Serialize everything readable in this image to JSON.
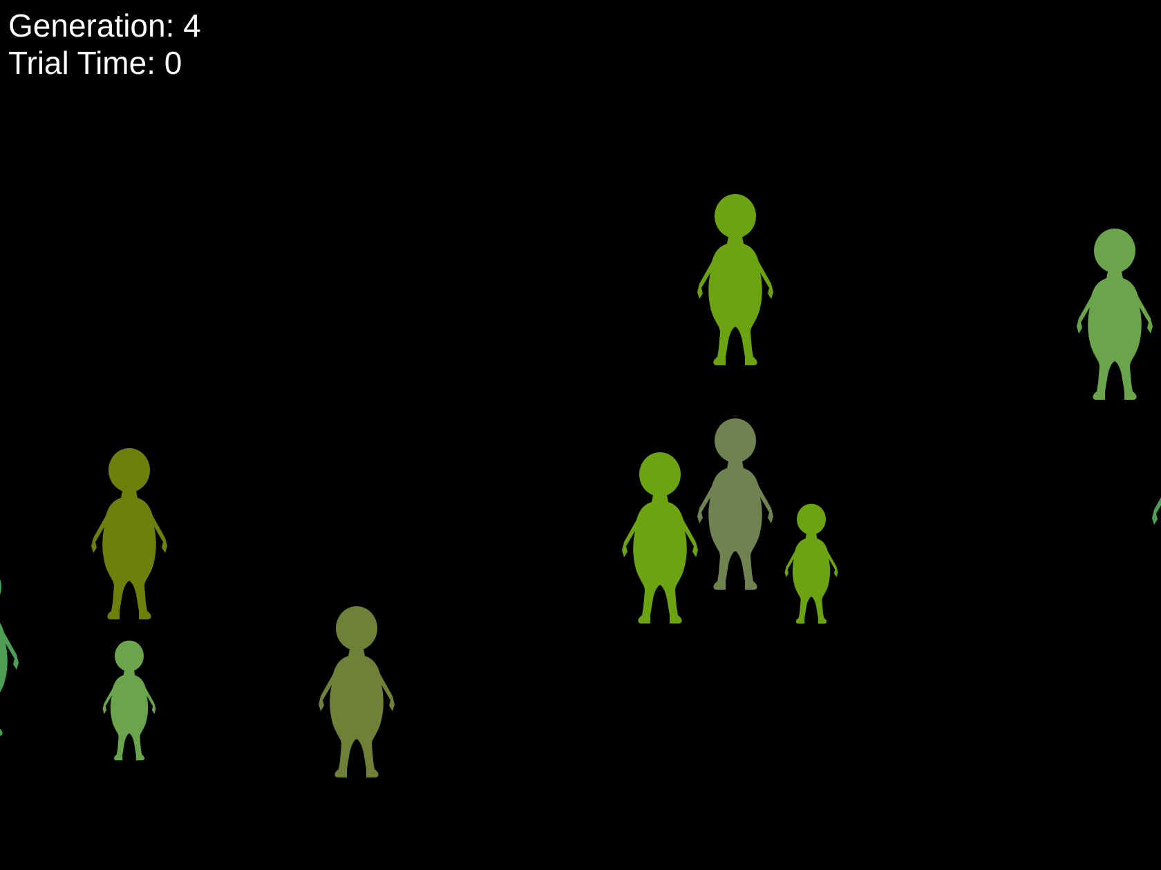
{
  "hud": {
    "generation_label": "Generation:",
    "generation_value": "4",
    "trial_time_label": "Trial Time:",
    "trial_time_value": "0"
  },
  "creatures": [
    {
      "id": "creature-1",
      "color": "#6ca311",
      "scale": 1.0
    },
    {
      "id": "creature-2",
      "color": "#6aa54b",
      "scale": 1.0
    },
    {
      "id": "creature-3",
      "color": "#6f7f0c",
      "scale": 1.0
    },
    {
      "id": "creature-4",
      "color": "#6ca311",
      "scale": 1.0
    },
    {
      "id": "creature-5",
      "color": "#6f8350",
      "scale": 1.0
    },
    {
      "id": "creature-6",
      "color": "#6ca311",
      "scale": 0.7
    },
    {
      "id": "creature-7",
      "color": "#6aa54b",
      "scale": 0.7
    },
    {
      "id": "creature-8",
      "color": "#6f8139",
      "scale": 1.0
    },
    {
      "id": "creature-9",
      "color": "#4e9e56",
      "scale": 1.0
    },
    {
      "id": "creature-10",
      "color": "#4e9e56",
      "scale": 1.0
    }
  ]
}
